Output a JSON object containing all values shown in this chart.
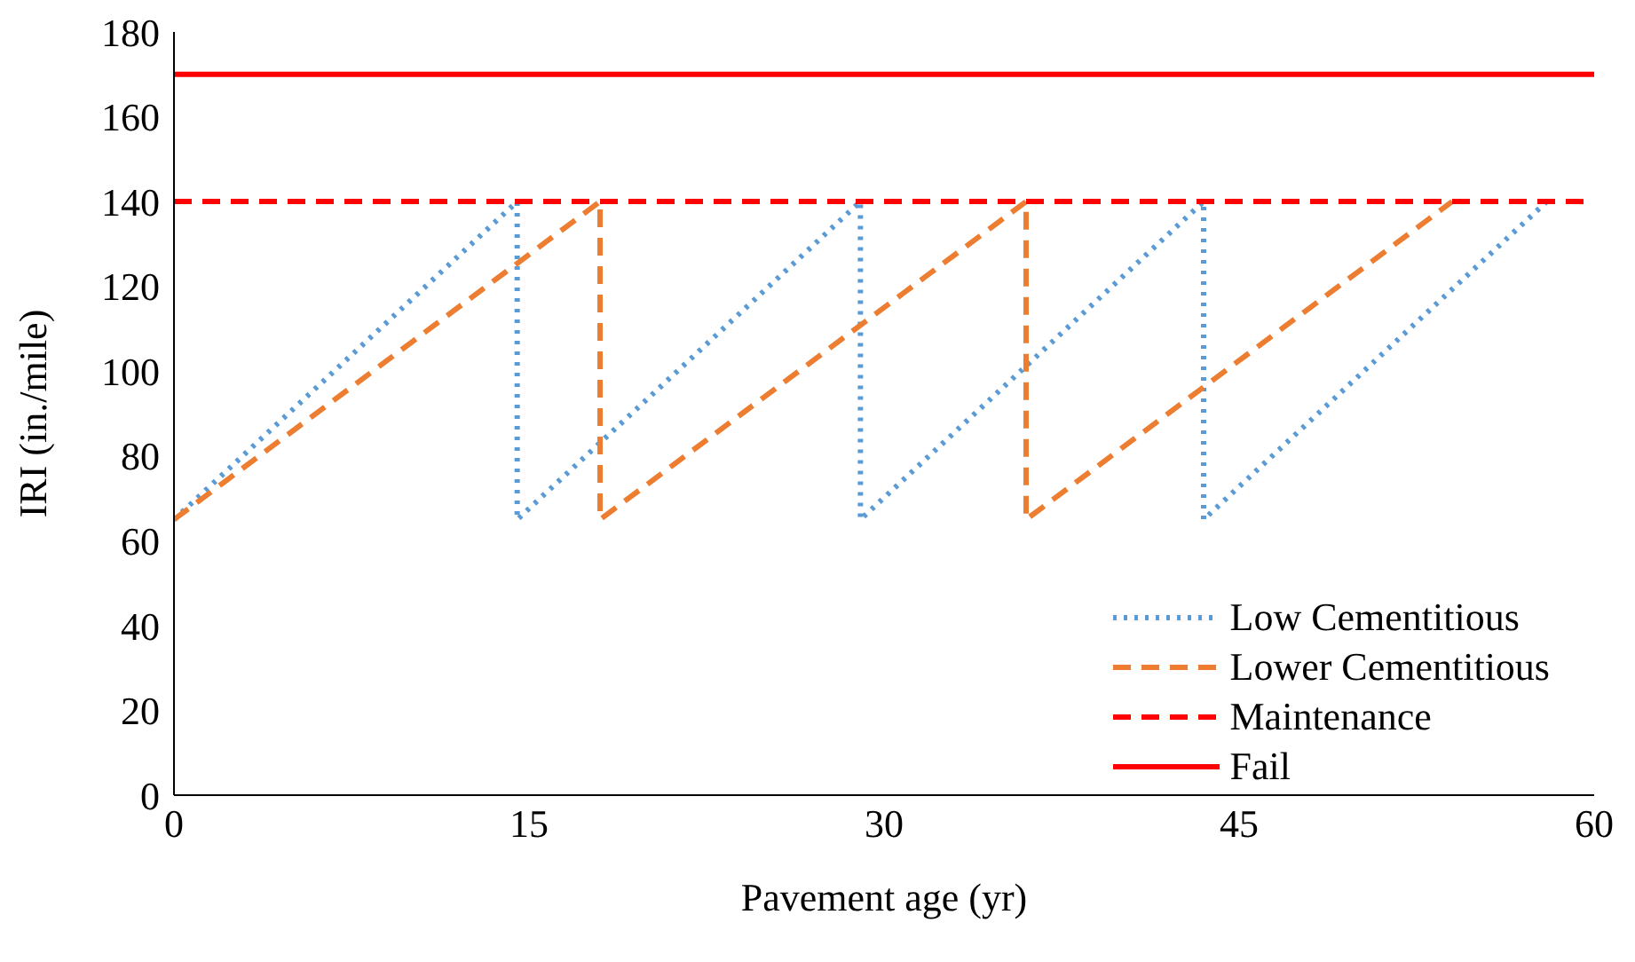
{
  "chart_data": {
    "type": "line",
    "xlabel": "Pavement age (yr)",
    "ylabel": "IRI (in./mile)",
    "xlim": [
      0,
      60
    ],
    "xticks": [
      0,
      15,
      30,
      45,
      60
    ],
    "ylim": [
      0,
      180
    ],
    "yticks": [
      0,
      20,
      40,
      60,
      80,
      100,
      120,
      140,
      160,
      180
    ],
    "grid": false,
    "legend": "bottom right",
    "marker": "none",
    "series": [
      {
        "name": "Low Cementitious",
        "color": "#5b9bd5",
        "line_style": "dotted",
        "x": [
          0,
          14.5,
          14.5,
          29,
          29,
          43.5,
          43.5,
          58
        ],
        "values": [
          65,
          140,
          65,
          140,
          65,
          140,
          65,
          140
        ]
      },
      {
        "name": "Lower Cementitious",
        "color": "#ed7d31",
        "line_style": "dashed",
        "x": [
          0,
          18,
          18,
          36,
          36,
          54
        ],
        "values": [
          65,
          140,
          65,
          140,
          65,
          140
        ]
      },
      {
        "name": "Maintenance",
        "color": "#ff0000",
        "line_style": "dashed",
        "x": [
          0,
          60
        ],
        "values": [
          140,
          140
        ]
      },
      {
        "name": "Fail",
        "color": "#ff0000",
        "line_style": "solid",
        "x": [
          0,
          60
        ],
        "values": [
          170,
          170
        ]
      }
    ]
  }
}
